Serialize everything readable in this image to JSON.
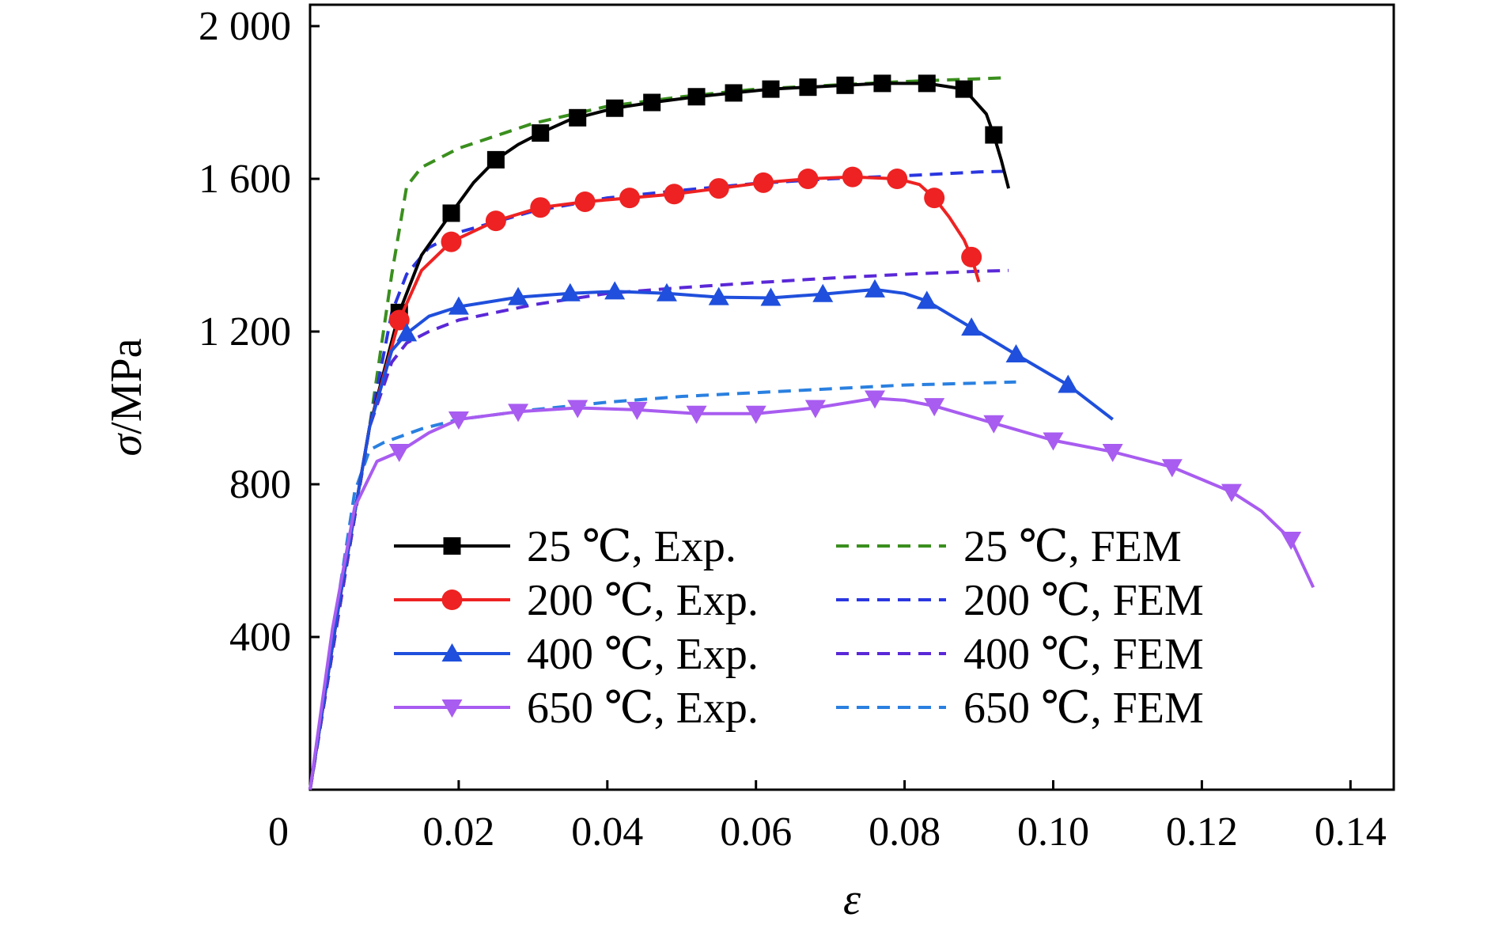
{
  "chart_data": {
    "type": "line",
    "title": "",
    "xlabel": "ε",
    "ylabel_symbol": "σ",
    "ylabel_unit": "/MPa",
    "xlim": [
      0,
      0.145
    ],
    "ylim": [
      0,
      2050
    ],
    "xticks": [
      {
        "v": 0,
        "label": "0"
      },
      {
        "v": 0.02,
        "label": "0.02"
      },
      {
        "v": 0.04,
        "label": "0.04"
      },
      {
        "v": 0.06,
        "label": "0.06"
      },
      {
        "v": 0.08,
        "label": "0.08"
      },
      {
        "v": 0.1,
        "label": "0.10"
      },
      {
        "v": 0.12,
        "label": "0.12"
      },
      {
        "v": 0.14,
        "label": "0.14"
      }
    ],
    "yticks": [
      {
        "v": 400,
        "label": "400"
      },
      {
        "v": 800,
        "label": "800"
      },
      {
        "v": 1200,
        "label": "1 200"
      },
      {
        "v": 1600,
        "label": "1 600"
      },
      {
        "v": 2000,
        "label": "2 000"
      }
    ],
    "grid": false,
    "legend_position": "bottom-center",
    "series": [
      {
        "name": "25 ℃, Exp.",
        "color": "#000000",
        "dash": false,
        "marker": "square",
        "line": [
          [
            0,
            0
          ],
          [
            0.004,
            500
          ],
          [
            0.008,
            950
          ],
          [
            0.012,
            1250
          ],
          [
            0.015,
            1400
          ],
          [
            0.019,
            1510
          ],
          [
            0.022,
            1590
          ],
          [
            0.025,
            1650
          ],
          [
            0.028,
            1690
          ],
          [
            0.031,
            1720
          ],
          [
            0.035,
            1755
          ],
          [
            0.041,
            1785
          ],
          [
            0.046,
            1800
          ],
          [
            0.052,
            1815
          ],
          [
            0.057,
            1825
          ],
          [
            0.062,
            1835
          ],
          [
            0.067,
            1840
          ],
          [
            0.072,
            1845
          ],
          [
            0.077,
            1850
          ],
          [
            0.083,
            1850
          ],
          [
            0.088,
            1835
          ],
          [
            0.091,
            1770
          ],
          [
            0.092,
            1715
          ],
          [
            0.093,
            1650
          ],
          [
            0.094,
            1575
          ]
        ],
        "markers": [
          [
            0.012,
            1250
          ],
          [
            0.019,
            1510
          ],
          [
            0.025,
            1650
          ],
          [
            0.031,
            1720
          ],
          [
            0.036,
            1760
          ],
          [
            0.041,
            1785
          ],
          [
            0.046,
            1800
          ],
          [
            0.052,
            1815
          ],
          [
            0.057,
            1825
          ],
          [
            0.062,
            1835
          ],
          [
            0.067,
            1840
          ],
          [
            0.072,
            1845
          ],
          [
            0.077,
            1850
          ],
          [
            0.083,
            1850
          ],
          [
            0.088,
            1835
          ],
          [
            0.092,
            1715
          ]
        ]
      },
      {
        "name": "200 ℃, Exp.",
        "color": "#ee2222",
        "dash": false,
        "marker": "circle",
        "line": [
          [
            0,
            0
          ],
          [
            0.004,
            500
          ],
          [
            0.008,
            950
          ],
          [
            0.012,
            1230
          ],
          [
            0.015,
            1360
          ],
          [
            0.019,
            1435
          ],
          [
            0.025,
            1490
          ],
          [
            0.031,
            1525
          ],
          [
            0.037,
            1540
          ],
          [
            0.043,
            1550
          ],
          [
            0.049,
            1560
          ],
          [
            0.055,
            1575
          ],
          [
            0.061,
            1590
          ],
          [
            0.067,
            1600
          ],
          [
            0.073,
            1605
          ],
          [
            0.079,
            1600
          ],
          [
            0.082,
            1585
          ],
          [
            0.084,
            1550
          ],
          [
            0.086,
            1500
          ],
          [
            0.088,
            1440
          ],
          [
            0.089,
            1395
          ],
          [
            0.09,
            1330
          ]
        ],
        "markers": [
          [
            0.012,
            1230
          ],
          [
            0.019,
            1435
          ],
          [
            0.025,
            1490
          ],
          [
            0.031,
            1525
          ],
          [
            0.037,
            1540
          ],
          [
            0.043,
            1550
          ],
          [
            0.049,
            1560
          ],
          [
            0.055,
            1575
          ],
          [
            0.061,
            1590
          ],
          [
            0.067,
            1600
          ],
          [
            0.073,
            1605
          ],
          [
            0.079,
            1600
          ],
          [
            0.084,
            1550
          ],
          [
            0.089,
            1395
          ]
        ]
      },
      {
        "name": "400 ℃, Exp.",
        "color": "#1f4fdc",
        "dash": false,
        "marker": "triangle-up",
        "line": [
          [
            0,
            0
          ],
          [
            0.004,
            500
          ],
          [
            0.008,
            950
          ],
          [
            0.011,
            1150
          ],
          [
            0.013,
            1195
          ],
          [
            0.016,
            1240
          ],
          [
            0.02,
            1265
          ],
          [
            0.028,
            1290
          ],
          [
            0.035,
            1300
          ],
          [
            0.041,
            1305
          ],
          [
            0.048,
            1300
          ],
          [
            0.055,
            1290
          ],
          [
            0.062,
            1288
          ],
          [
            0.069,
            1298
          ],
          [
            0.076,
            1310
          ],
          [
            0.08,
            1300
          ],
          [
            0.083,
            1280
          ],
          [
            0.089,
            1210
          ],
          [
            0.095,
            1140
          ],
          [
            0.102,
            1060
          ],
          [
            0.108,
            970
          ]
        ],
        "markers": [
          [
            0.013,
            1195
          ],
          [
            0.02,
            1265
          ],
          [
            0.028,
            1290
          ],
          [
            0.035,
            1300
          ],
          [
            0.041,
            1305
          ],
          [
            0.048,
            1300
          ],
          [
            0.055,
            1290
          ],
          [
            0.062,
            1288
          ],
          [
            0.069,
            1298
          ],
          [
            0.076,
            1310
          ],
          [
            0.083,
            1280
          ],
          [
            0.089,
            1210
          ],
          [
            0.095,
            1140
          ],
          [
            0.102,
            1060
          ]
        ]
      },
      {
        "name": "650 ℃, Exp.",
        "color": "#a85cf0",
        "dash": false,
        "marker": "triangle-down",
        "line": [
          [
            0,
            0
          ],
          [
            0.003,
            420
          ],
          [
            0.006,
            740
          ],
          [
            0.009,
            860
          ],
          [
            0.012,
            885
          ],
          [
            0.016,
            935
          ],
          [
            0.02,
            970
          ],
          [
            0.028,
            990
          ],
          [
            0.036,
            1000
          ],
          [
            0.044,
            995
          ],
          [
            0.052,
            985
          ],
          [
            0.06,
            985
          ],
          [
            0.068,
            1000
          ],
          [
            0.076,
            1025
          ],
          [
            0.08,
            1020
          ],
          [
            0.084,
            1005
          ],
          [
            0.092,
            960
          ],
          [
            0.1,
            915
          ],
          [
            0.108,
            885
          ],
          [
            0.116,
            845
          ],
          [
            0.124,
            780
          ],
          [
            0.128,
            730
          ],
          [
            0.132,
            655
          ],
          [
            0.135,
            530
          ]
        ],
        "markers": [
          [
            0.012,
            885
          ],
          [
            0.02,
            970
          ],
          [
            0.028,
            990
          ],
          [
            0.036,
            1000
          ],
          [
            0.044,
            995
          ],
          [
            0.052,
            985
          ],
          [
            0.06,
            985
          ],
          [
            0.068,
            1000
          ],
          [
            0.076,
            1025
          ],
          [
            0.084,
            1005
          ],
          [
            0.092,
            960
          ],
          [
            0.1,
            915
          ],
          [
            0.108,
            885
          ],
          [
            0.116,
            845
          ],
          [
            0.124,
            780
          ],
          [
            0.132,
            655
          ]
        ]
      },
      {
        "name": "25 ℃, FEM",
        "color": "#3a8f1e",
        "dash": true,
        "marker": "",
        "line": [
          [
            0,
            0
          ],
          [
            0.004,
            480
          ],
          [
            0.008,
            950
          ],
          [
            0.011,
            1350
          ],
          [
            0.013,
            1580
          ],
          [
            0.015,
            1630
          ],
          [
            0.02,
            1680
          ],
          [
            0.03,
            1745
          ],
          [
            0.04,
            1790
          ],
          [
            0.05,
            1815
          ],
          [
            0.06,
            1835
          ],
          [
            0.07,
            1845
          ],
          [
            0.08,
            1855
          ],
          [
            0.09,
            1862
          ],
          [
            0.094,
            1865
          ]
        ]
      },
      {
        "name": "200 ℃, FEM",
        "color": "#2a36e0",
        "dash": true,
        "marker": "",
        "line": [
          [
            0,
            0
          ],
          [
            0.004,
            480
          ],
          [
            0.008,
            950
          ],
          [
            0.011,
            1250
          ],
          [
            0.013,
            1350
          ],
          [
            0.016,
            1420
          ],
          [
            0.02,
            1460
          ],
          [
            0.03,
            1515
          ],
          [
            0.04,
            1550
          ],
          [
            0.05,
            1570
          ],
          [
            0.06,
            1588
          ],
          [
            0.07,
            1600
          ],
          [
            0.08,
            1608
          ],
          [
            0.09,
            1618
          ],
          [
            0.094,
            1620
          ]
        ]
      },
      {
        "name": "400 ℃, FEM",
        "color": "#5a28d8",
        "dash": true,
        "marker": "",
        "line": [
          [
            0,
            0
          ],
          [
            0.004,
            480
          ],
          [
            0.008,
            950
          ],
          [
            0.011,
            1120
          ],
          [
            0.013,
            1170
          ],
          [
            0.016,
            1200
          ],
          [
            0.02,
            1230
          ],
          [
            0.03,
            1270
          ],
          [
            0.04,
            1300
          ],
          [
            0.05,
            1315
          ],
          [
            0.06,
            1328
          ],
          [
            0.07,
            1340
          ],
          [
            0.08,
            1350
          ],
          [
            0.09,
            1358
          ],
          [
            0.094,
            1360
          ]
        ]
      },
      {
        "name": "650 ℃, FEM",
        "color": "#2a80e0",
        "dash": true,
        "marker": "",
        "line": [
          [
            0,
            0
          ],
          [
            0.003,
            400
          ],
          [
            0.006,
            780
          ],
          [
            0.008,
            890
          ],
          [
            0.01,
            910
          ],
          [
            0.015,
            945
          ],
          [
            0.02,
            970
          ],
          [
            0.03,
            995
          ],
          [
            0.04,
            1015
          ],
          [
            0.05,
            1030
          ],
          [
            0.06,
            1040
          ],
          [
            0.07,
            1050
          ],
          [
            0.08,
            1060
          ],
          [
            0.09,
            1065
          ],
          [
            0.095,
            1068
          ]
        ]
      }
    ]
  }
}
